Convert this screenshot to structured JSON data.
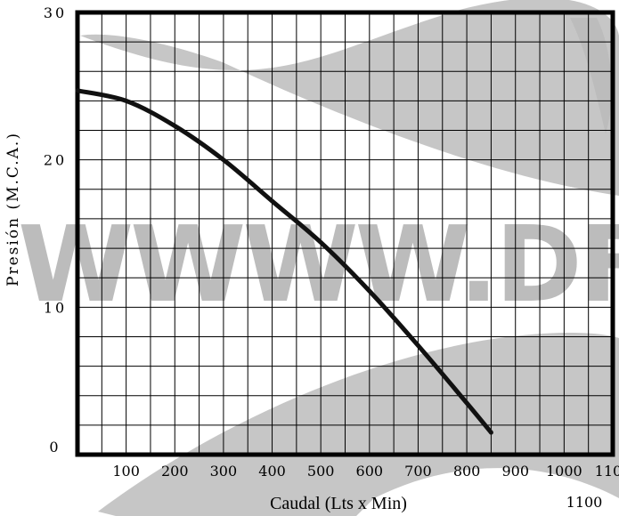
{
  "chart_data": {
    "type": "line",
    "title": "",
    "xlabel": "Caudal (Lts x Min)",
    "ylabel": "Presión (M.C.A.)",
    "xlim": [
      0,
      1100
    ],
    "ylim": [
      0,
      30
    ],
    "x_ticks": [
      "100",
      "200",
      "300",
      "400",
      "500",
      "600",
      "700",
      "800",
      "900",
      "1000",
      "1100"
    ],
    "y_ticks": [
      "0",
      "10",
      "20",
      "30"
    ],
    "extra_label": "1100",
    "grid": true,
    "series": [
      {
        "x": [
          0,
          100,
          200,
          300,
          400,
          500,
          600,
          700,
          800,
          850
        ],
        "y": [
          24.7,
          24.0,
          22.3,
          20.0,
          17.2,
          14.4,
          11.1,
          7.4,
          3.5,
          1.5
        ]
      }
    ],
    "watermark": {
      "text": "WWWW.DF",
      "color": "#b5b5b5"
    },
    "colors": {
      "line": "#111111",
      "grid": "#000000",
      "watermark": "#bcbcbc"
    }
  }
}
